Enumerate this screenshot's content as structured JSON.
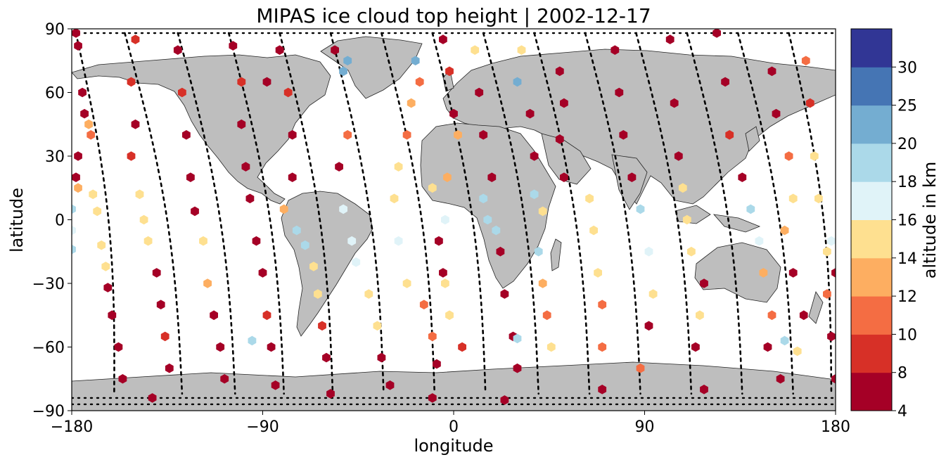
{
  "chart_data": {
    "type": "scatter",
    "title": "MIPAS ice cloud top height | 2002-12-17",
    "xlabel": "longitude",
    "ylabel": "latitude",
    "xlim": [
      -180,
      180
    ],
    "ylim": [
      -90,
      90
    ],
    "xticks": [
      -180,
      -90,
      0,
      90,
      180
    ],
    "yticks": [
      -90,
      -60,
      -30,
      0,
      30,
      60,
      90
    ],
    "xtick_labels": [
      "−180",
      "−90",
      "0",
      "90",
      "180"
    ],
    "ytick_labels": [
      "−90",
      "−60",
      "−30",
      "0",
      "30",
      "60",
      "90"
    ],
    "land_color": "#bebebe",
    "track_color": "#000000",
    "colorbar": {
      "label": "altitude in km",
      "bounds": [
        4,
        8,
        10,
        12,
        14,
        16,
        18,
        20,
        25,
        30
      ],
      "tick_labels": [
        "4",
        "8",
        "10",
        "12",
        "14",
        "16",
        "18",
        "20",
        "25",
        "30"
      ],
      "colors": [
        "#a50026",
        "#d73027",
        "#f46d43",
        "#fdae61",
        "#fee090",
        "#e0f3f8",
        "#abd9e9",
        "#74add1",
        "#4575b4",
        "#313695"
      ]
    },
    "orbits": [
      {
        "lon_north": -178,
        "lon_south": -160
      },
      {
        "lon_north": -155,
        "lon_south": -128
      },
      {
        "lon_north": -130,
        "lon_south": -103
      },
      {
        "lon_north": -106,
        "lon_south": -80
      },
      {
        "lon_north": -82,
        "lon_south": -57
      },
      {
        "lon_north": -58,
        "lon_south": -33
      },
      {
        "lon_north": -34,
        "lon_south": -9
      },
      {
        "lon_north": -10,
        "lon_south": 15
      },
      {
        "lon_north": 14,
        "lon_south": 40
      },
      {
        "lon_north": 38,
        "lon_south": 64
      },
      {
        "lon_north": 62,
        "lon_south": 88
      },
      {
        "lon_north": 86,
        "lon_south": 112
      },
      {
        "lon_north": 110,
        "lon_south": 136
      },
      {
        "lon_north": 134,
        "lon_south": 160
      },
      {
        "lon_north": 158,
        "lon_south": 178
      }
    ],
    "points": [
      {
        "lon": -178,
        "lat": 88,
        "h": 6
      },
      {
        "lon": -177,
        "lat": 82,
        "h": 6
      },
      {
        "lon": -175,
        "lat": 60,
        "h": 6
      },
      {
        "lon": -174,
        "lat": 50,
        "h": 6
      },
      {
        "lon": -177,
        "lat": 30,
        "h": 6
      },
      {
        "lon": -178,
        "lat": 20,
        "h": 6
      },
      {
        "lon": -177,
        "lat": 15,
        "h": 13
      },
      {
        "lon": -180,
        "lat": 5,
        "h": 18
      },
      {
        "lon": -180,
        "lat": -5,
        "h": 17
      },
      {
        "lon": -180,
        "lat": -14,
        "h": 18
      },
      {
        "lon": -172,
        "lat": 45,
        "h": 13
      },
      {
        "lon": -171,
        "lat": 40,
        "h": 11
      },
      {
        "lon": -170,
        "lat": 12,
        "h": 15
      },
      {
        "lon": -168,
        "lat": 4,
        "h": 15
      },
      {
        "lon": -166,
        "lat": -12,
        "h": 14
      },
      {
        "lon": -164,
        "lat": -22,
        "h": 14
      },
      {
        "lon": -163,
        "lat": -32,
        "h": 6
      },
      {
        "lon": -161,
        "lat": -45,
        "h": 6
      },
      {
        "lon": -158,
        "lat": -60,
        "h": 6
      },
      {
        "lon": -156,
        "lat": -75,
        "h": 6
      },
      {
        "lon": -150,
        "lat": 85,
        "h": 9
      },
      {
        "lon": -152,
        "lat": 65,
        "h": 9
      },
      {
        "lon": -150,
        "lat": 45,
        "h": 6
      },
      {
        "lon": -152,
        "lat": 30,
        "h": 9
      },
      {
        "lon": -148,
        "lat": 12,
        "h": 15
      },
      {
        "lon": -146,
        "lat": 0,
        "h": 14
      },
      {
        "lon": -144,
        "lat": -10,
        "h": 14
      },
      {
        "lon": -140,
        "lat": -25,
        "h": 6
      },
      {
        "lon": -138,
        "lat": -40,
        "h": 6
      },
      {
        "lon": -136,
        "lat": -55,
        "h": 9
      },
      {
        "lon": -134,
        "lat": -70,
        "h": 6
      },
      {
        "lon": -142,
        "lat": -84,
        "h": 6
      },
      {
        "lon": -130,
        "lat": 80,
        "h": 6
      },
      {
        "lon": -128,
        "lat": 60,
        "h": 9
      },
      {
        "lon": -126,
        "lat": 40,
        "h": 6
      },
      {
        "lon": -124,
        "lat": 20,
        "h": 6
      },
      {
        "lon": -122,
        "lat": 4,
        "h": 6
      },
      {
        "lon": -118,
        "lat": -10,
        "h": 15
      },
      {
        "lon": -116,
        "lat": -30,
        "h": 13
      },
      {
        "lon": -113,
        "lat": -45,
        "h": 6
      },
      {
        "lon": -110,
        "lat": -60,
        "h": 6
      },
      {
        "lon": -108,
        "lat": -75,
        "h": 6
      },
      {
        "lon": -104,
        "lat": 82,
        "h": 6
      },
      {
        "lon": -100,
        "lat": 65,
        "h": 9
      },
      {
        "lon": -100,
        "lat": 45,
        "h": 6
      },
      {
        "lon": -98,
        "lat": 25,
        "h": 6
      },
      {
        "lon": -96,
        "lat": 10,
        "h": 6
      },
      {
        "lon": -93,
        "lat": -10,
        "h": 6
      },
      {
        "lon": -90,
        "lat": -25,
        "h": 6
      },
      {
        "lon": -88,
        "lat": -45,
        "h": 9
      },
      {
        "lon": -86,
        "lat": -60,
        "h": 6
      },
      {
        "lon": -84,
        "lat": -78,
        "h": 6
      },
      {
        "lon": -95,
        "lat": -57,
        "h": 18
      },
      {
        "lon": -88,
        "lat": 65,
        "h": 6
      },
      {
        "lon": -82,
        "lat": 80,
        "h": 6
      },
      {
        "lon": -78,
        "lat": 60,
        "h": 9
      },
      {
        "lon": -76,
        "lat": 40,
        "h": 6
      },
      {
        "lon": -76,
        "lat": 20,
        "h": 6
      },
      {
        "lon": -80,
        "lat": 5,
        "h": 13
      },
      {
        "lon": -74,
        "lat": -5,
        "h": 18
      },
      {
        "lon": -70,
        "lat": -12,
        "h": 18
      },
      {
        "lon": -66,
        "lat": -22,
        "h": 15
      },
      {
        "lon": -64,
        "lat": -35,
        "h": 14
      },
      {
        "lon": -62,
        "lat": -50,
        "h": 9
      },
      {
        "lon": -60,
        "lat": -65,
        "h": 6
      },
      {
        "lon": -58,
        "lat": -82,
        "h": 6
      },
      {
        "lon": -56,
        "lat": 80,
        "h": 6
      },
      {
        "lon": -52,
        "lat": 70,
        "h": 20
      },
      {
        "lon": -50,
        "lat": 75,
        "h": 20
      },
      {
        "lon": -50,
        "lat": 40,
        "h": 11
      },
      {
        "lon": -54,
        "lat": 25,
        "h": 6
      },
      {
        "lon": -52,
        "lat": 5,
        "h": 17
      },
      {
        "lon": -48,
        "lat": -10,
        "h": 17
      },
      {
        "lon": -46,
        "lat": -20,
        "h": 17
      },
      {
        "lon": -40,
        "lat": -35,
        "h": 14
      },
      {
        "lon": -36,
        "lat": -50,
        "h": 14
      },
      {
        "lon": -34,
        "lat": -65,
        "h": 6
      },
      {
        "lon": -30,
        "lat": -78,
        "h": 6
      },
      {
        "lon": -18,
        "lat": 75,
        "h": 20
      },
      {
        "lon": -16,
        "lat": 65,
        "h": 11
      },
      {
        "lon": -20,
        "lat": 55,
        "h": 13
      },
      {
        "lon": -22,
        "lat": 40,
        "h": 10
      },
      {
        "lon": -26,
        "lat": 25,
        "h": 14
      },
      {
        "lon": -28,
        "lat": 10,
        "h": 15
      },
      {
        "lon": -26,
        "lat": -10,
        "h": 17
      },
      {
        "lon": -22,
        "lat": -30,
        "h": 14
      },
      {
        "lon": -14,
        "lat": -40,
        "h": 10
      },
      {
        "lon": -10,
        "lat": -55,
        "h": 11
      },
      {
        "lon": -8,
        "lat": -68,
        "h": 6
      },
      {
        "lon": -10,
        "lat": -84,
        "h": 6
      },
      {
        "lon": -5,
        "lat": 85,
        "h": 6
      },
      {
        "lon": -2,
        "lat": 70,
        "h": 9
      },
      {
        "lon": 0,
        "lat": 50,
        "h": 6
      },
      {
        "lon": 2,
        "lat": 40,
        "h": 13
      },
      {
        "lon": -3,
        "lat": 20,
        "h": 13
      },
      {
        "lon": -10,
        "lat": 15,
        "h": 14
      },
      {
        "lon": -4,
        "lat": 0,
        "h": 17
      },
      {
        "lon": -7,
        "lat": -10,
        "h": 6
      },
      {
        "lon": -5,
        "lat": -25,
        "h": 6
      },
      {
        "lon": -4,
        "lat": -30,
        "h": 14
      },
      {
        "lon": -2,
        "lat": -45,
        "h": 14
      },
      {
        "lon": 4,
        "lat": -60,
        "h": 9
      },
      {
        "lon": 10,
        "lat": 80,
        "h": 15
      },
      {
        "lon": 12,
        "lat": 60,
        "h": 6
      },
      {
        "lon": 14,
        "lat": 40,
        "h": 6
      },
      {
        "lon": 18,
        "lat": 20,
        "h": 6
      },
      {
        "lon": 14,
        "lat": 10,
        "h": 18
      },
      {
        "lon": 16,
        "lat": 0,
        "h": 18
      },
      {
        "lon": 20,
        "lat": -5,
        "h": 18
      },
      {
        "lon": 22,
        "lat": -15,
        "h": 6
      },
      {
        "lon": 24,
        "lat": -35,
        "h": 6
      },
      {
        "lon": 28,
        "lat": -55,
        "h": 6
      },
      {
        "lon": 30,
        "lat": -70,
        "h": 6
      },
      {
        "lon": 24,
        "lat": -85,
        "h": 6
      },
      {
        "lon": 30,
        "lat": 65,
        "h": 20
      },
      {
        "lon": 32,
        "lat": 80,
        "h": 15
      },
      {
        "lon": 36,
        "lat": 50,
        "h": 6
      },
      {
        "lon": 38,
        "lat": 30,
        "h": 6
      },
      {
        "lon": 38,
        "lat": 12,
        "h": 18
      },
      {
        "lon": 42,
        "lat": 4,
        "h": 15
      },
      {
        "lon": 40,
        "lat": -15,
        "h": 18
      },
      {
        "lon": 42,
        "lat": -30,
        "h": 13
      },
      {
        "lon": 44,
        "lat": -45,
        "h": 11
      },
      {
        "lon": 46,
        "lat": -60,
        "h": 14
      },
      {
        "lon": 30,
        "lat": -56,
        "h": 18
      },
      {
        "lon": 50,
        "lat": 70,
        "h": 6
      },
      {
        "lon": 52,
        "lat": 55,
        "h": 6
      },
      {
        "lon": 50,
        "lat": 38,
        "h": 6
      },
      {
        "lon": 52,
        "lat": 20,
        "h": 6
      },
      {
        "lon": 64,
        "lat": 10,
        "h": 15
      },
      {
        "lon": 66,
        "lat": -5,
        "h": 15
      },
      {
        "lon": 68,
        "lat": -25,
        "h": 15
      },
      {
        "lon": 70,
        "lat": -40,
        "h": 11
      },
      {
        "lon": 70,
        "lat": -60,
        "h": 11
      },
      {
        "lon": 70,
        "lat": -80,
        "h": 6
      },
      {
        "lon": 76,
        "lat": 80,
        "h": 6
      },
      {
        "lon": 78,
        "lat": 60,
        "h": 6
      },
      {
        "lon": 80,
        "lat": 40,
        "h": 6
      },
      {
        "lon": 84,
        "lat": 20,
        "h": 6
      },
      {
        "lon": 88,
        "lat": 5,
        "h": 18
      },
      {
        "lon": 92,
        "lat": -15,
        "h": 17
      },
      {
        "lon": 94,
        "lat": -35,
        "h": 14
      },
      {
        "lon": 92,
        "lat": -50,
        "h": 6
      },
      {
        "lon": 88,
        "lat": -70,
        "h": 11
      },
      {
        "lon": 102,
        "lat": 85,
        "h": 6
      },
      {
        "lon": 104,
        "lat": 55,
        "h": 6
      },
      {
        "lon": 106,
        "lat": 30,
        "h": 6
      },
      {
        "lon": 108,
        "lat": 15,
        "h": 15
      },
      {
        "lon": 110,
        "lat": 0,
        "h": 15
      },
      {
        "lon": 112,
        "lat": -15,
        "h": 14
      },
      {
        "lon": 118,
        "lat": -30,
        "h": 6
      },
      {
        "lon": 116,
        "lat": -45,
        "h": 14
      },
      {
        "lon": 114,
        "lat": -60,
        "h": 6
      },
      {
        "lon": 118,
        "lat": -80,
        "h": 6
      },
      {
        "lon": 124,
        "lat": 88,
        "h": 6
      },
      {
        "lon": 128,
        "lat": 65,
        "h": 6
      },
      {
        "lon": 130,
        "lat": 40,
        "h": 9
      },
      {
        "lon": 136,
        "lat": 20,
        "h": 6
      },
      {
        "lon": 140,
        "lat": 5,
        "h": 18
      },
      {
        "lon": 144,
        "lat": -10,
        "h": 17
      },
      {
        "lon": 146,
        "lat": -25,
        "h": 13
      },
      {
        "lon": 150,
        "lat": -45,
        "h": 10
      },
      {
        "lon": 148,
        "lat": -60,
        "h": 6
      },
      {
        "lon": 154,
        "lat": -75,
        "h": 6
      },
      {
        "lon": 150,
        "lat": 70,
        "h": 6
      },
      {
        "lon": 152,
        "lat": 50,
        "h": 6
      },
      {
        "lon": 158,
        "lat": 30,
        "h": 11
      },
      {
        "lon": 160,
        "lat": 10,
        "h": 15
      },
      {
        "lon": 156,
        "lat": -5,
        "h": 13
      },
      {
        "lon": 160,
        "lat": -25,
        "h": 6
      },
      {
        "lon": 165,
        "lat": -45,
        "h": 6
      },
      {
        "lon": 162,
        "lat": -62,
        "h": 14
      },
      {
        "lon": 166,
        "lat": 75,
        "h": 10
      },
      {
        "lon": 168,
        "lat": 55,
        "h": 9
      },
      {
        "lon": 170,
        "lat": 30,
        "h": 14
      },
      {
        "lon": 172,
        "lat": 10,
        "h": 15
      },
      {
        "lon": 176,
        "lat": -15,
        "h": 15
      },
      {
        "lon": 176,
        "lat": -35,
        "h": 10
      },
      {
        "lon": 178,
        "lat": -55,
        "h": 6
      },
      {
        "lon": 180,
        "lat": -75,
        "h": 6
      },
      {
        "lon": 178,
        "lat": -10,
        "h": 16
      },
      {
        "lon": 180,
        "lat": -25,
        "h": 6
      },
      {
        "lon": 156,
        "lat": -57,
        "h": 18
      }
    ]
  }
}
